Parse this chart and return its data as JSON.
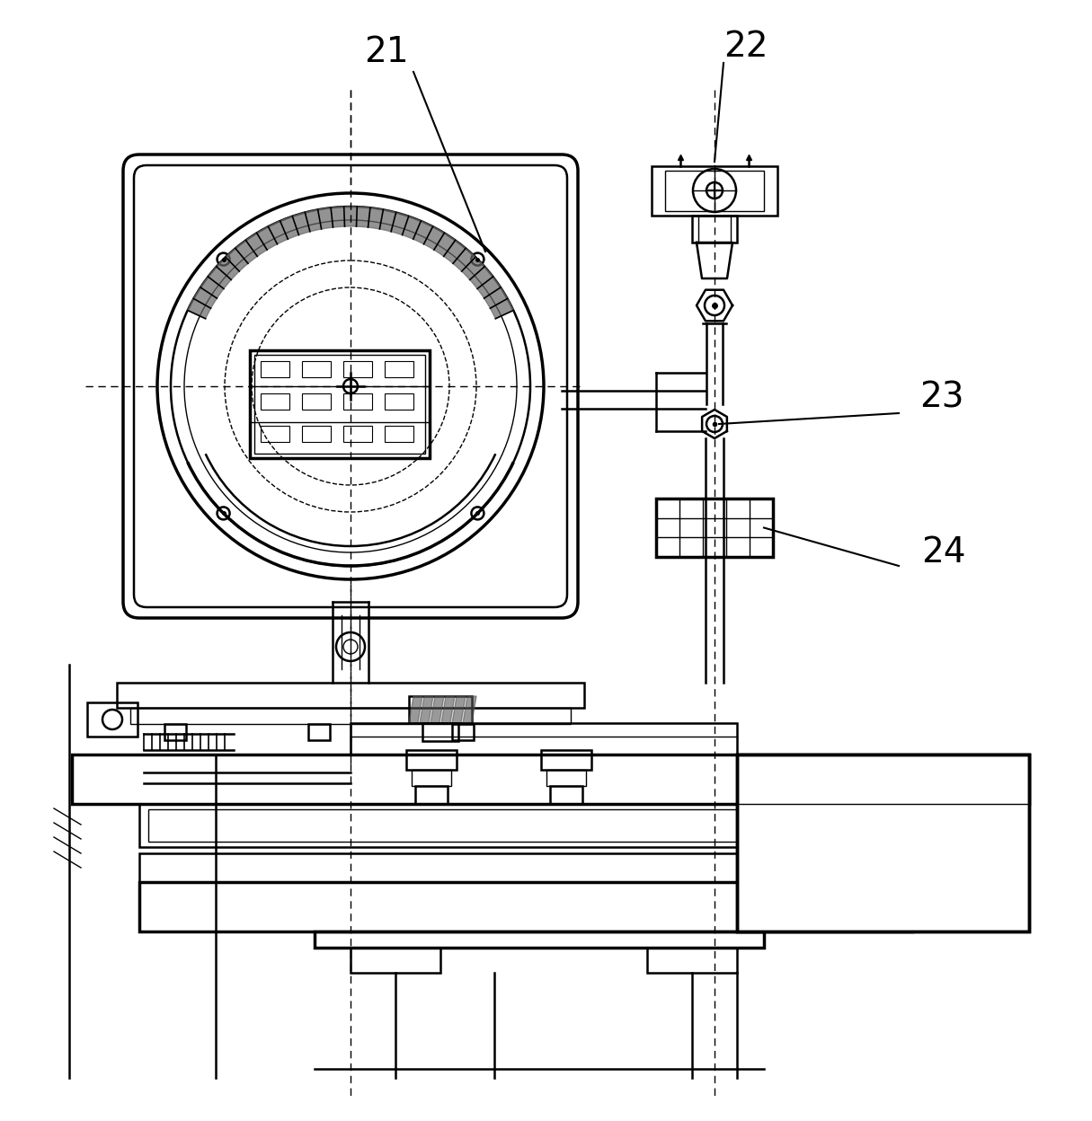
{
  "bg_color": "#ffffff",
  "line_color": "#000000",
  "label_21": "21",
  "label_22": "22",
  "label_23": "23",
  "label_24": "24",
  "label_fontsize": 28,
  "fig_width": 12.15,
  "fig_height": 12.48
}
